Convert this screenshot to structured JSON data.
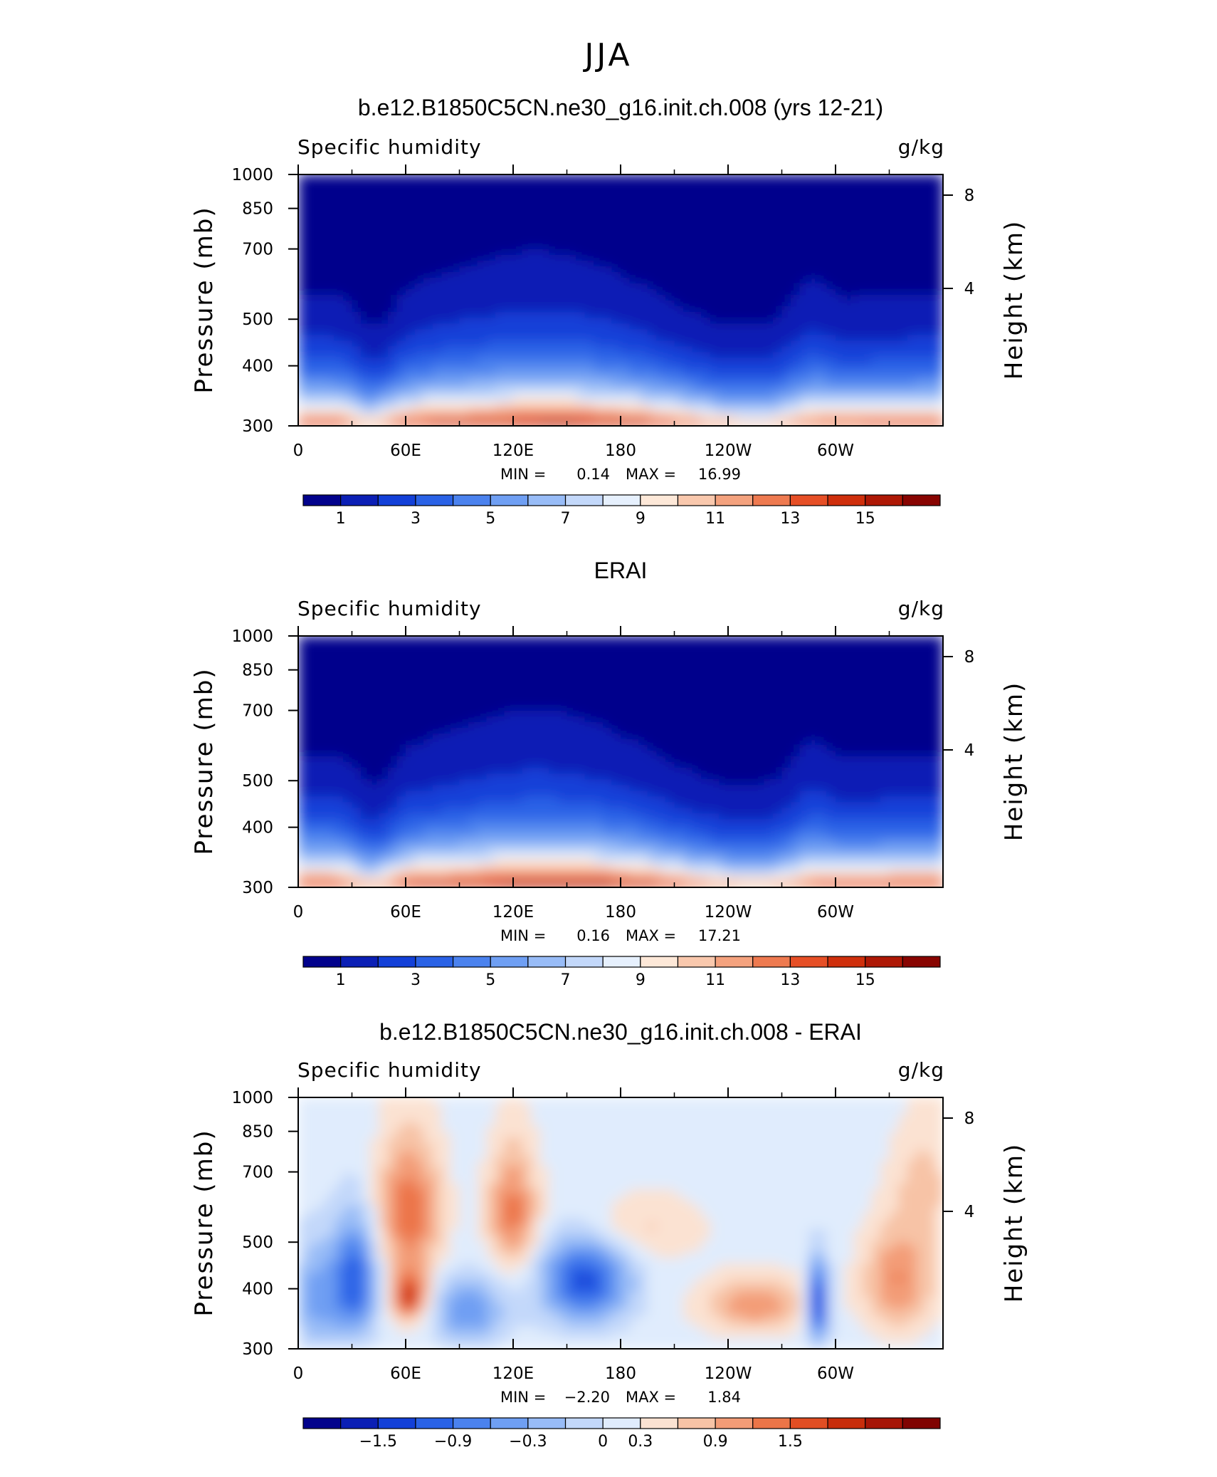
{
  "figure": {
    "title": "JJA"
  },
  "palettes": {
    "humidity": [
      "#02028c",
      "#0b1fb5",
      "#1340d8",
      "#2a62e6",
      "#4b82ee",
      "#6f9ff3",
      "#98bcf7",
      "#c3d8fa",
      "#e6f0fd",
      "#fde8d8",
      "#f9c8ad",
      "#f4a27e",
      "#ee7a50",
      "#e64f26",
      "#cf2f0c",
      "#ae1805",
      "#880401"
    ],
    "difference": [
      "#02028c",
      "#0b1fb5",
      "#1340d8",
      "#2a62e6",
      "#4b82ee",
      "#6f9ff3",
      "#98bcf7",
      "#c3d8fa",
      "#e0ecfd",
      "#fbe2d2",
      "#f7c3a6",
      "#f39c77",
      "#ec7548",
      "#e14e23",
      "#c82d0b",
      "#a61506",
      "#800301"
    ]
  },
  "chart_data": [
    {
      "type": "heatmap",
      "title": "b.e12.B1850C5CN.ne30_g16.init.ch.008 (yrs 12-21)",
      "variable": "Specific humidity",
      "units": "g/kg",
      "ylabel": "Pressure (mb)",
      "y2label": "Height (km)",
      "x_ticks": [
        "0",
        "60E",
        "120E",
        "180",
        "120W",
        "60W"
      ],
      "y_ticks": [
        "300",
        "400",
        "500",
        "700",
        "850",
        "1000"
      ],
      "y2_ticks": [
        "8",
        "4"
      ],
      "ylim": [
        1000,
        300
      ],
      "min_label": "MIN =",
      "min": "0.14",
      "max_label": "MAX =",
      "max": "16.99",
      "colorbar": {
        "palette": "humidity",
        "ticks": [
          "1",
          "3",
          "5",
          "7",
          "9",
          "11",
          "13",
          "15"
        ]
      },
      "terrain": true
    },
    {
      "type": "heatmap",
      "title": "ERAI",
      "variable": "Specific humidity",
      "units": "g/kg",
      "ylabel": "Pressure (mb)",
      "y2label": "Height (km)",
      "x_ticks": [
        "0",
        "60E",
        "120E",
        "180",
        "120W",
        "60W"
      ],
      "y_ticks": [
        "300",
        "400",
        "500",
        "700",
        "850",
        "1000"
      ],
      "y2_ticks": [
        "8",
        "4"
      ],
      "ylim": [
        1000,
        300
      ],
      "min_label": "MIN =",
      "min": "0.16",
      "max_label": "MAX =",
      "max": "17.21",
      "colorbar": {
        "palette": "humidity",
        "ticks": [
          "1",
          "3",
          "5",
          "7",
          "9",
          "11",
          "13",
          "15"
        ]
      },
      "terrain": false
    },
    {
      "type": "heatmap",
      "title": "b.e12.B1850C5CN.ne30_g16.init.ch.008 - ERAI",
      "variable": "Specific humidity",
      "units": "g/kg",
      "ylabel": "Pressure (mb)",
      "y2label": "Height (km)",
      "x_ticks": [
        "0",
        "60E",
        "120E",
        "180",
        "120W",
        "60W"
      ],
      "y_ticks": [
        "300",
        "400",
        "500",
        "700",
        "850",
        "1000"
      ],
      "y2_ticks": [
        "8",
        "4"
      ],
      "ylim": [
        1000,
        300
      ],
      "min_label": "MIN =",
      "min": "−2.20",
      "max_label": "MAX =",
      "max": "1.84",
      "colorbar": {
        "palette": "difference",
        "ticks": [
          "−1.5",
          "−0.9",
          "−0.3",
          "0",
          "0.3",
          "0.9",
          "1.5"
        ]
      },
      "terrain": true
    }
  ]
}
